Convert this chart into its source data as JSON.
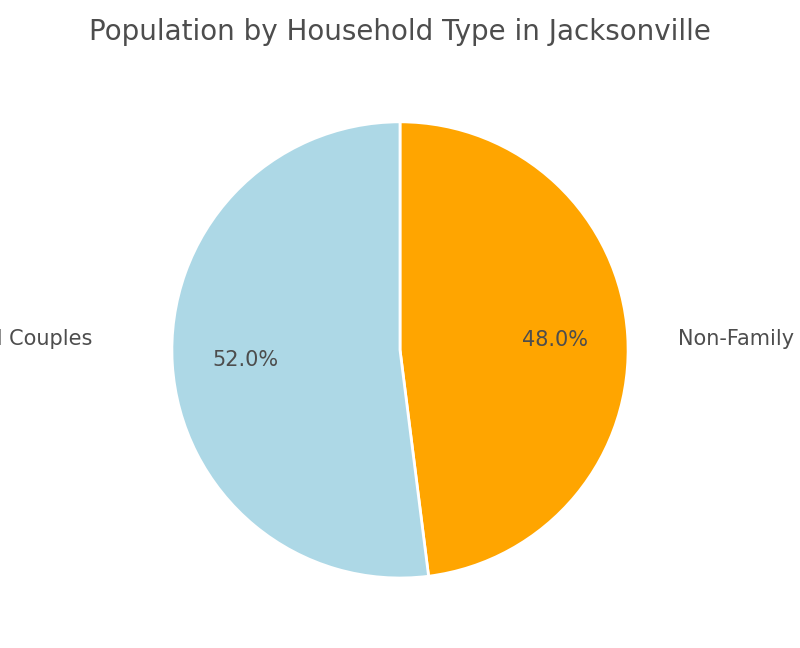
{
  "title": "Population by Household Type in Jacksonville",
  "labels": [
    "Non-Family",
    "Married Couples"
  ],
  "values": [
    48.0,
    52.0
  ],
  "colors": [
    "#FFA500",
    "#ADD8E6"
  ],
  "startangle": 90,
  "title_fontsize": 20,
  "label_fontsize": 15,
  "autopct_fontsize": 15,
  "background_color": "#ffffff",
  "label_color": "#4d4d4d",
  "wedge_edge_color": "white",
  "wedge_linewidth": 2.0,
  "pctdistance": 0.68
}
